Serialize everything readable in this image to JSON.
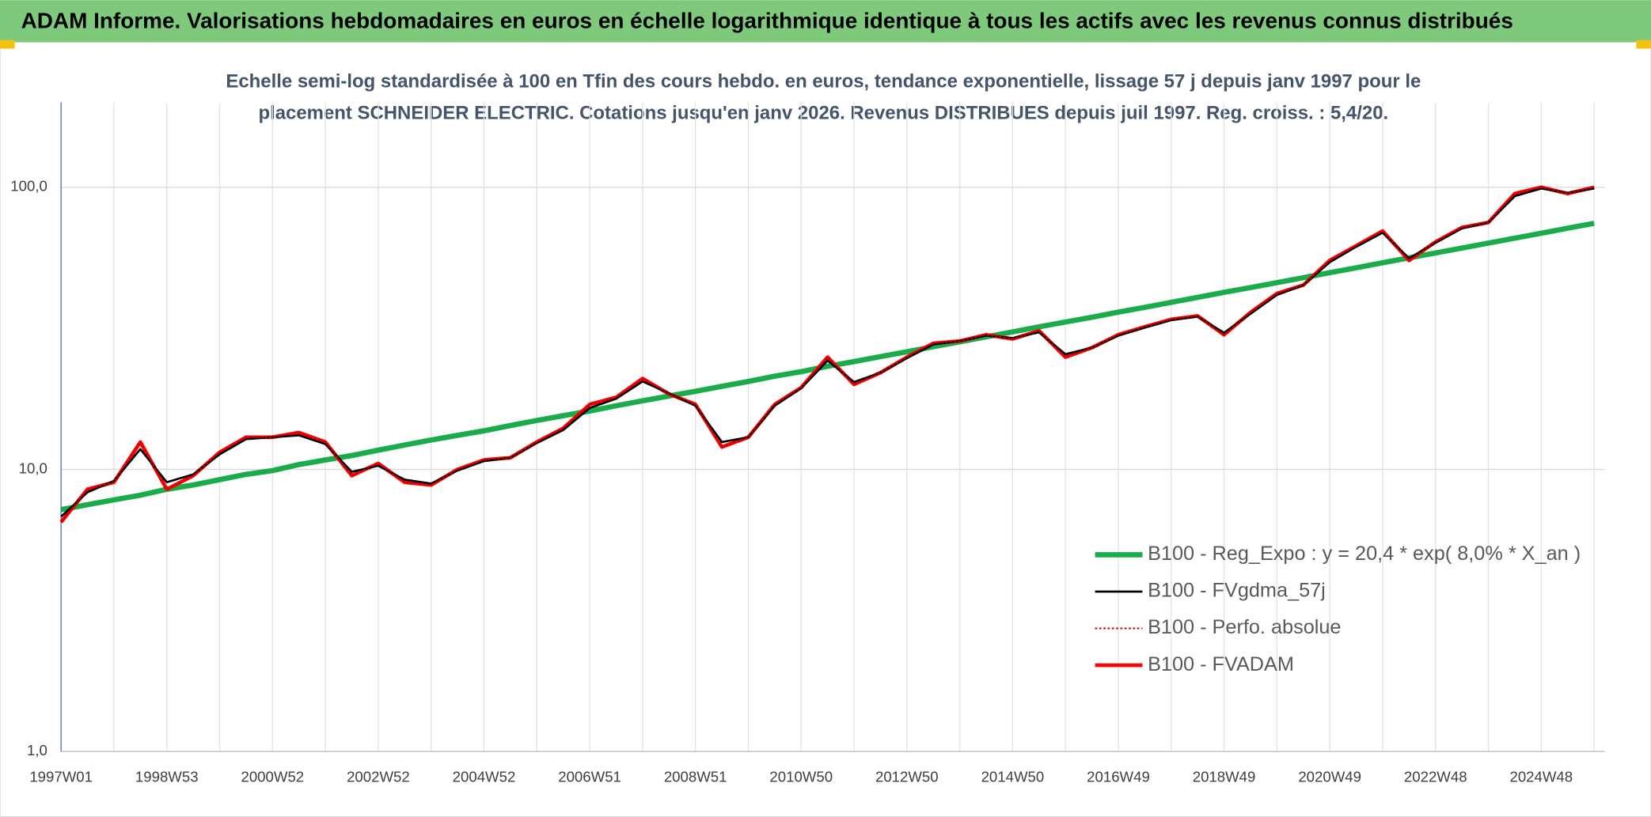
{
  "chart_data": {
    "type": "line",
    "title": "ADAM Informe. Valorisations hebdomadaires en euros en échelle logarithmique identique à tous les actifs avec les revenus connus distribués",
    "subtitle": [
      "Echelle semi-log standardisée à 100 en Tfin des cours hebdo. en euros, tendance exponentielle, lissage 57 j depuis janv 1997 pour le",
      "placement SCHNEIDER ELECTRIC. Cotations jusqu'en janv 2026. Revenus DISTRIBUES depuis juil 1997. Reg. croiss. : 5,4/20."
    ],
    "categories": [
      "1997W01",
      null,
      null,
      null,
      "1998W53",
      null,
      null,
      null,
      "2000W52",
      null,
      null,
      null,
      "2002W52",
      null,
      null,
      null,
      "2004W52",
      null,
      null,
      null,
      "2006W51",
      null,
      null,
      null,
      "2008W51",
      null,
      null,
      null,
      "2010W50",
      null,
      null,
      null,
      "2012W50",
      null,
      null,
      null,
      "2014W50",
      null,
      null,
      null,
      "2016W49",
      null,
      null,
      null,
      "2018W49",
      null,
      null,
      null,
      "2020W49",
      null,
      null,
      null,
      "2022W48",
      null,
      null,
      null,
      "2024W48",
      null,
      null
    ],
    "series": [
      {
        "name": "B100 - Reg_Expo : y = 20,4 * exp( 8,0% *  X_an )",
        "color": "#1aab4a",
        "style": "solid",
        "values": [
          7.2,
          7.5,
          7.8,
          8.1,
          8.5,
          8.8,
          9.2,
          9.6,
          9.9,
          10.4,
          10.8,
          11.2,
          11.7,
          12.2,
          12.7,
          13.2,
          13.7,
          14.3,
          14.9,
          15.5,
          16.1,
          16.8,
          17.5,
          18.2,
          18.9,
          19.7,
          20.5,
          21.4,
          22.2,
          23.2,
          24.1,
          25.1,
          26.1,
          27.2,
          28.3,
          29.5,
          30.7,
          32.0,
          33.3,
          34.6,
          36.1,
          37.5,
          39.1,
          40.7,
          42.4,
          44.1,
          45.9,
          47.8,
          49.8,
          51.8,
          54.0,
          56.2,
          58.5,
          60.9,
          63.4,
          66.0,
          68.7,
          71.6,
          74.5
        ]
      },
      {
        "name": "B100 - FVgdma_57j",
        "color": "#000000",
        "style": "solid",
        "values": [
          6.8,
          8.3,
          9.1,
          11.8,
          9.0,
          9.6,
          11.3,
          12.8,
          13.0,
          13.2,
          12.3,
          9.8,
          10.3,
          9.2,
          8.9,
          9.9,
          10.7,
          11.0,
          12.4,
          13.8,
          16.5,
          17.8,
          20.5,
          18.6,
          16.8,
          12.5,
          13.0,
          16.8,
          19.4,
          24.3,
          20.4,
          22.0,
          24.8,
          27.7,
          28.5,
          29.8,
          29.2,
          30.6,
          25.6,
          27.0,
          29.8,
          31.8,
          33.8,
          34.8,
          30.5,
          35.6,
          41.5,
          45.0,
          54.2,
          61.5,
          69.0,
          56.0,
          63.5,
          71.5,
          75.0,
          93.0,
          99.0,
          95.5,
          99.0
        ]
      },
      {
        "name": "B100 - Perfo. absolue",
        "color": "#c00000",
        "style": "dotted",
        "values": [
          6.5,
          8.5,
          9.0,
          12.5,
          8.5,
          9.5,
          11.5,
          13.0,
          13.0,
          13.5,
          12.5,
          9.5,
          10.5,
          9.0,
          8.8,
          10.0,
          10.8,
          11.0,
          12.5,
          14.0,
          17,
          18,
          21,
          18.5,
          17,
          12,
          13,
          17,
          19.5,
          25,
          20,
          22,
          25,
          28,
          28.5,
          30,
          29,
          31,
          25,
          27,
          30,
          32,
          34,
          35,
          30,
          36,
          42,
          45,
          55,
          62,
          70,
          55,
          64,
          72,
          75,
          95,
          100,
          95,
          100
        ]
      },
      {
        "name": "B100 - FVADAM",
        "color": "#ff0000",
        "style": "solid",
        "values": [
          6.5,
          8.5,
          9.0,
          12.5,
          8.5,
          9.5,
          11.5,
          13.0,
          13.0,
          13.5,
          12.5,
          9.5,
          10.5,
          9.0,
          8.8,
          10.0,
          10.8,
          11.0,
          12.5,
          14.0,
          17,
          18,
          21,
          18.5,
          17,
          12,
          13,
          17,
          19.5,
          25,
          20,
          22,
          25,
          28,
          28.5,
          30,
          29,
          31,
          25,
          27,
          30,
          32,
          34,
          35,
          30,
          36,
          42,
          45,
          55,
          62,
          70,
          55,
          64,
          72,
          75,
          95,
          100,
          95,
          100
        ]
      }
    ],
    "log_scale": true,
    "ylim": [
      1,
      200
    ],
    "yticks": [
      {
        "value": 1,
        "label": "1,0"
      },
      {
        "value": 10,
        "label": "10,0"
      },
      {
        "value": 100,
        "label": "100,0"
      }
    ],
    "grid": true,
    "legend": "right"
  }
}
